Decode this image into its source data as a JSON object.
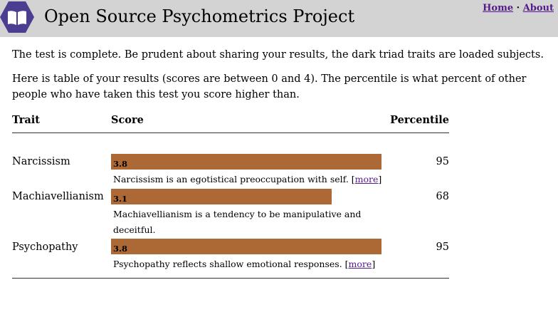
{
  "header": {
    "site_title": "Open Source Psychometrics Project",
    "nav": {
      "home": "Home",
      "separator": " · ",
      "about": "About"
    }
  },
  "intro": {
    "line1": "The test is complete. Be prudent about sharing your results, the dark triad traits are loaded subjects.",
    "line2": "Here is table of your results (scores are between 0 and 4). The percentile is what percent of other people who have taken this test you score higher than."
  },
  "table": {
    "headers": {
      "trait": "Trait",
      "score": "Score",
      "percentile": "Percentile"
    },
    "score_scale": {
      "min": 0,
      "max": 4
    },
    "rows": [
      {
        "trait": "Narcissism",
        "score": 3.8,
        "score_label": "3.8",
        "percentile": "95",
        "description": "Narcissism is an egotistical preoccupation with self.",
        "more_label": "more"
      },
      {
        "trait": "Machiavellianism",
        "score": 3.1,
        "score_label": "3.1",
        "percentile": "68",
        "description": "Machiavellianism is a tendency to be manipulative and deceitful.",
        "more_label": "more"
      },
      {
        "trait": "Psychopathy",
        "score": 3.8,
        "score_label": "3.8",
        "percentile": "95",
        "description": "Psychopathy reflects shallow emotional responses.",
        "more_label": "more"
      }
    ]
  },
  "colors": {
    "header_bg": "#d3d3d3",
    "logo": "#4b3d8f",
    "bar": "#ad6935",
    "link": "#551a8b"
  }
}
